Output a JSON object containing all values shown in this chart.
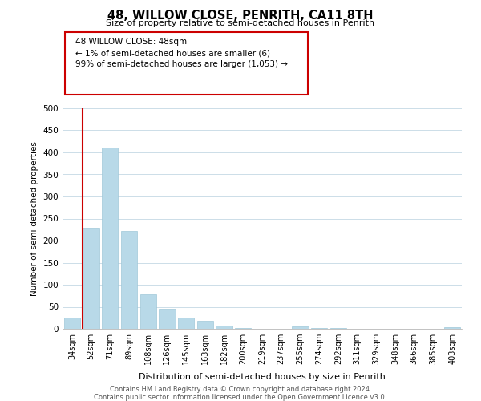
{
  "title": "48, WILLOW CLOSE, PENRITH, CA11 8TH",
  "subtitle": "Size of property relative to semi-detached houses in Penrith",
  "xlabel": "Distribution of semi-detached houses by size in Penrith",
  "ylabel": "Number of semi-detached properties",
  "bar_color": "#b8d9e8",
  "bar_edge_color": "#9fc8d8",
  "marker_color": "#cc0000",
  "categories": [
    "34sqm",
    "52sqm",
    "71sqm",
    "89sqm",
    "108sqm",
    "126sqm",
    "145sqm",
    "163sqm",
    "182sqm",
    "200sqm",
    "219sqm",
    "237sqm",
    "255sqm",
    "274sqm",
    "292sqm",
    "311sqm",
    "329sqm",
    "348sqm",
    "366sqm",
    "385sqm",
    "403sqm"
  ],
  "values": [
    25,
    230,
    410,
    222,
    78,
    45,
    26,
    18,
    8,
    2,
    0,
    0,
    6,
    2,
    1,
    0,
    0,
    0,
    0,
    0,
    4
  ],
  "ylim": [
    0,
    500
  ],
  "yticks": [
    0,
    50,
    100,
    150,
    200,
    250,
    300,
    350,
    400,
    450,
    500
  ],
  "annotation_title": "48 WILLOW CLOSE: 48sqm",
  "annotation_line1": "← 1% of semi-detached houses are smaller (6)",
  "annotation_line2": "99% of semi-detached houses are larger (1,053) →",
  "footer1": "Contains HM Land Registry data © Crown copyright and database right 2024.",
  "footer2": "Contains public sector information licensed under the Open Government Licence v3.0.",
  "background_color": "#ffffff",
  "grid_color": "#ccdde8"
}
